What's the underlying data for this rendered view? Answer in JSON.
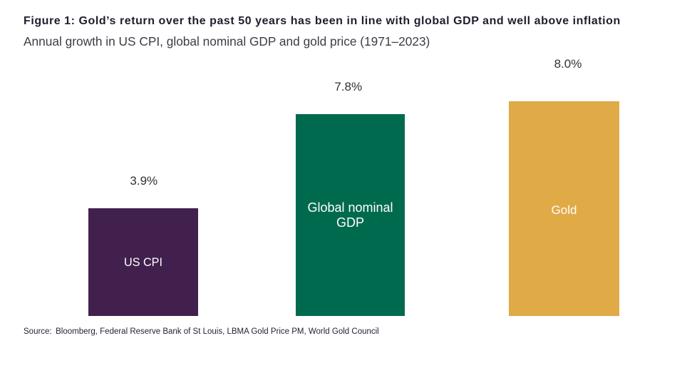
{
  "chart_data": {
    "type": "bar",
    "title": "Figure 1: Gold’s return over the past 50 years has been in line with global GDP and well above inflation",
    "subtitle": "Annual growth in US CPI, global nominal GDP and gold price (1971–2023)",
    "categories": [
      "US CPI",
      "Global nominal GDP",
      "Gold"
    ],
    "values": [
      3.9,
      7.8,
      8.0
    ],
    "series": [
      {
        "name": "Annual growth (1971–2023)",
        "values": [
          3.9,
          7.8,
          8.0
        ]
      }
    ],
    "bars": [
      {
        "category": "US CPI",
        "value": 3.9,
        "value_label": "3.9%",
        "color": "#42204E"
      },
      {
        "category": "Global nominal GDP",
        "value": 7.8,
        "value_label": "7.8%",
        "color": "#006A4F"
      },
      {
        "category": "Gold",
        "value": 8.0,
        "value_label": "8.0%",
        "color": "#E0AA47"
      }
    ],
    "unit": "%",
    "ylim": [
      0,
      8.5
    ],
    "grid": false,
    "legend": "none",
    "axes_visible": false,
    "value_label_position": "above-bar",
    "category_label_position": "inside-bar-center",
    "category_label_color": "#FFFFFF",
    "background_color": "#FFFFFF",
    "source_label": "Source:",
    "source": "Bloomberg, Federal Reserve Bank of St Louis, LBMA Gold Price PM, World Gold Council"
  }
}
